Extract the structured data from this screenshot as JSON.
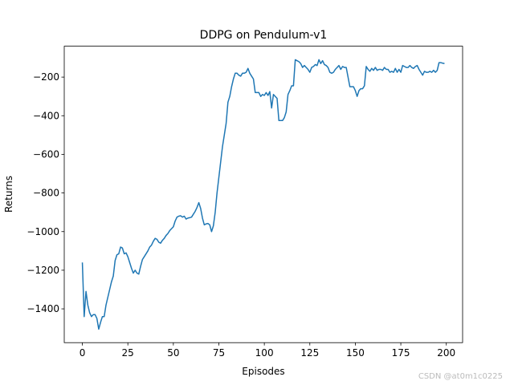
{
  "chart_data": {
    "type": "line",
    "title": "DDPG on Pendulum-v1",
    "x_label": "Episodes",
    "y_label": "Returns",
    "x": [
      0,
      1,
      2,
      3,
      4,
      5,
      6,
      7,
      8,
      9,
      10,
      11,
      12,
      13,
      14,
      15,
      16,
      17,
      18,
      19,
      20,
      21,
      22,
      23,
      24,
      25,
      26,
      27,
      28,
      29,
      30,
      31,
      32,
      33,
      34,
      35,
      36,
      37,
      38,
      39,
      40,
      41,
      42,
      43,
      44,
      45,
      46,
      47,
      48,
      49,
      50,
      51,
      52,
      53,
      54,
      55,
      56,
      57,
      58,
      59,
      60,
      61,
      62,
      63,
      64,
      65,
      66,
      67,
      68,
      69,
      70,
      71,
      72,
      73,
      74,
      75,
      76,
      77,
      78,
      79,
      80,
      81,
      82,
      83,
      84,
      85,
      86,
      87,
      88,
      89,
      90,
      91,
      92,
      93,
      94,
      95,
      96,
      97,
      98,
      99,
      100,
      101,
      102,
      103,
      104,
      105,
      106,
      107,
      108,
      109,
      110,
      111,
      112,
      113,
      114,
      115,
      116,
      117,
      118,
      119,
      120,
      121,
      122,
      123,
      124,
      125,
      126,
      127,
      128,
      129,
      130,
      131,
      132,
      133,
      134,
      135,
      136,
      137,
      138,
      139,
      140,
      141,
      142,
      143,
      144,
      145,
      146,
      147,
      148,
      149,
      150,
      151,
      152,
      153,
      154,
      155,
      156,
      157,
      158,
      159,
      160,
      161,
      162,
      163,
      164,
      165,
      166,
      167,
      168,
      169,
      170,
      171,
      172,
      173,
      174,
      175,
      176,
      177,
      178,
      179,
      180,
      181,
      182,
      183,
      184,
      185,
      186,
      187,
      188,
      189,
      190,
      191,
      192,
      193,
      194,
      195,
      196,
      197,
      198,
      199
    ],
    "series": [
      {
        "name": "DDPG",
        "color": "#1f77b4",
        "values": [
          -1160,
          -1440,
          -1310,
          -1380,
          -1420,
          -1440,
          -1430,
          -1430,
          -1450,
          -1505,
          -1470,
          -1440,
          -1440,
          -1380,
          -1340,
          -1300,
          -1260,
          -1230,
          -1150,
          -1120,
          -1115,
          -1080,
          -1085,
          -1115,
          -1110,
          -1130,
          -1160,
          -1190,
          -1215,
          -1200,
          -1215,
          -1220,
          -1180,
          -1145,
          -1130,
          -1115,
          -1100,
          -1080,
          -1070,
          -1050,
          -1035,
          -1040,
          -1055,
          -1060,
          -1045,
          -1035,
          -1020,
          -1010,
          -995,
          -985,
          -975,
          -945,
          -925,
          -920,
          -918,
          -925,
          -920,
          -935,
          -930,
          -928,
          -925,
          -910,
          -895,
          -875,
          -850,
          -880,
          -930,
          -965,
          -960,
          -958,
          -965,
          -1000,
          -970,
          -900,
          -800,
          -720,
          -640,
          -560,
          -500,
          -440,
          -330,
          -300,
          -250,
          -210,
          -180,
          -180,
          -190,
          -195,
          -180,
          -180,
          -175,
          -155,
          -180,
          -195,
          -210,
          -280,
          -280,
          -280,
          -300,
          -290,
          -295,
          -280,
          -295,
          -275,
          -360,
          -290,
          -300,
          -310,
          -425,
          -425,
          -425,
          -410,
          -380,
          -290,
          -270,
          -245,
          -245,
          -110,
          -115,
          -120,
          -130,
          -150,
          -140,
          -150,
          -160,
          -175,
          -150,
          -145,
          -135,
          -140,
          -110,
          -130,
          -115,
          -135,
          -140,
          -150,
          -175,
          -180,
          -175,
          -160,
          -150,
          -140,
          -160,
          -145,
          -150,
          -150,
          -200,
          -250,
          -250,
          -250,
          -270,
          -300,
          -270,
          -260,
          -260,
          -245,
          -145,
          -160,
          -170,
          -155,
          -165,
          -150,
          -165,
          -160,
          -160,
          -165,
          -150,
          -160,
          -160,
          -175,
          -170,
          -175,
          -155,
          -175,
          -160,
          -175,
          -140,
          -145,
          -150,
          -150,
          -140,
          -150,
          -155,
          -145,
          -140,
          -160,
          -175,
          -190,
          -170,
          -175,
          -175,
          -170,
          -175,
          -165,
          -175,
          -165,
          -125,
          -125,
          -128,
          -130
        ]
      }
    ],
    "xlim": [
      -9.95,
      208.95
    ],
    "xticks": [
      0,
      25,
      50,
      75,
      100,
      125,
      150,
      175,
      200
    ],
    "ylim": [
      -1575,
      -40
    ],
    "yticks": [
      {
        "value": -1400,
        "label": "−1400"
      },
      {
        "value": -1200,
        "label": "−1200"
      },
      {
        "value": -1000,
        "label": "−1000"
      },
      {
        "value": -800,
        "label": "−800"
      },
      {
        "value": -600,
        "label": "−600"
      },
      {
        "value": -400,
        "label": "−400"
      },
      {
        "value": -200,
        "label": "−200"
      }
    ],
    "watermark": "CSDN @at0m1c0225"
  }
}
